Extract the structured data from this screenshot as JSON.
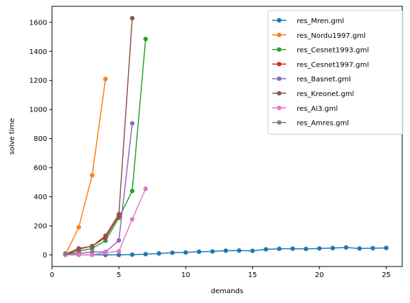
{
  "chart_data": {
    "type": "line",
    "xlabel": "demands",
    "ylabel": "solve time",
    "xlim": [
      0,
      26.2
    ],
    "ylim": [
      -80,
      1710
    ],
    "xticks": [
      0,
      5,
      10,
      15,
      20,
      25
    ],
    "yticks": [
      0,
      200,
      400,
      600,
      800,
      1000,
      1200,
      1400,
      1600
    ],
    "grid": false,
    "legend_position": "top-right",
    "series": [
      {
        "name": "res_Mren.gml",
        "color": "#1f77b4",
        "x": [
          1,
          2,
          3,
          4,
          5,
          6,
          7,
          8,
          9,
          10,
          11,
          12,
          13,
          14,
          15,
          16,
          17,
          18,
          19,
          20,
          21,
          22,
          23,
          24,
          25
        ],
        "y": [
          0,
          0,
          0,
          0,
          0,
          2,
          5,
          10,
          15,
          17,
          22,
          24,
          29,
          30,
          28,
          38,
          42,
          43,
          41,
          44,
          47,
          51,
          44,
          46,
          48
        ]
      },
      {
        "name": "res_Nordu1997.gml",
        "color": "#ff7f0e",
        "x": [
          1,
          2,
          3,
          4
        ],
        "y": [
          0,
          190,
          548,
          1210
        ]
      },
      {
        "name": "res_Cesnet1993.gml",
        "color": "#2ca02c",
        "x": [
          1,
          2,
          3,
          4,
          5,
          6,
          7
        ],
        "y": [
          0,
          25,
          45,
          98,
          255,
          440,
          1485
        ]
      },
      {
        "name": "res_Cesnet1997.gml",
        "color": "#d62728",
        "x": [
          1,
          2,
          3,
          4,
          5
        ],
        "y": [
          0,
          40,
          60,
          120,
          270
        ]
      },
      {
        "name": "res_Basnet.gml",
        "color": "#9467bd",
        "x": [
          1,
          2,
          3,
          4,
          5,
          6
        ],
        "y": [
          0,
          10,
          20,
          20,
          100,
          905
        ]
      },
      {
        "name": "res_Kreonet.gml",
        "color": "#8c564b",
        "x": [
          1,
          2,
          3,
          4,
          5,
          6
        ],
        "y": [
          5,
          45,
          60,
          132,
          280,
          1628
        ]
      },
      {
        "name": "res_Ai3.gml",
        "color": "#e377c2",
        "x": [
          1,
          2,
          3,
          4,
          5,
          6,
          7
        ],
        "y": [
          0,
          0,
          0,
          15,
          25,
          245,
          455
        ]
      },
      {
        "name": "res_Amres.gml",
        "color": "#7f7f7f",
        "x": [
          1
        ],
        "y": [
          10
        ]
      }
    ]
  }
}
